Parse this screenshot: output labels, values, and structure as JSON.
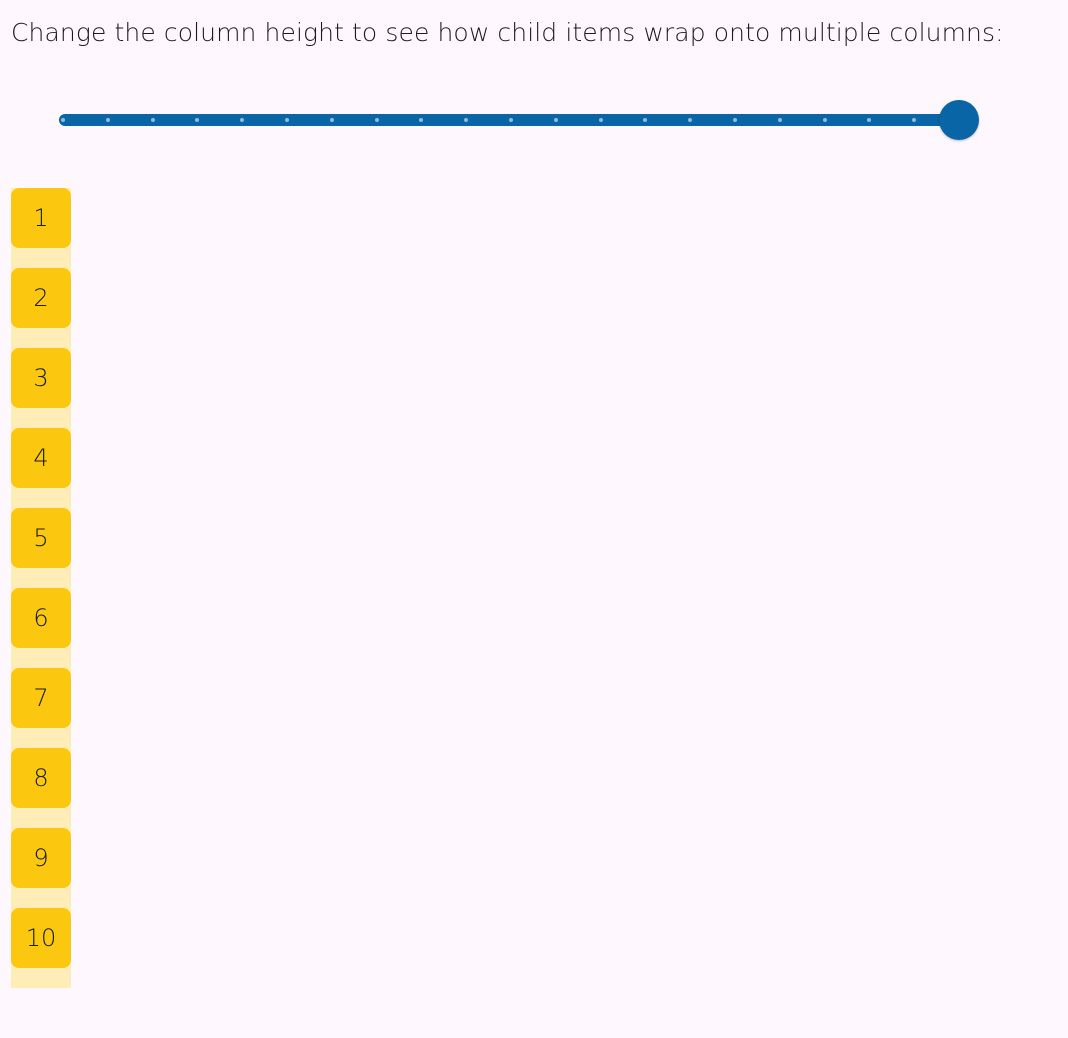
{
  "prompt": "Change the column height to see how child items wrap onto multiple columns:",
  "slider": {
    "min": 0,
    "max": 20,
    "value": 20,
    "divisions": 20,
    "color": "#0965a6"
  },
  "items": [
    "1",
    "2",
    "3",
    "4",
    "5",
    "6",
    "7",
    "8",
    "9",
    "10"
  ],
  "colors": {
    "item": "#fbc70f",
    "column_bg": "#ffedb8",
    "background": "#fef7fd"
  }
}
